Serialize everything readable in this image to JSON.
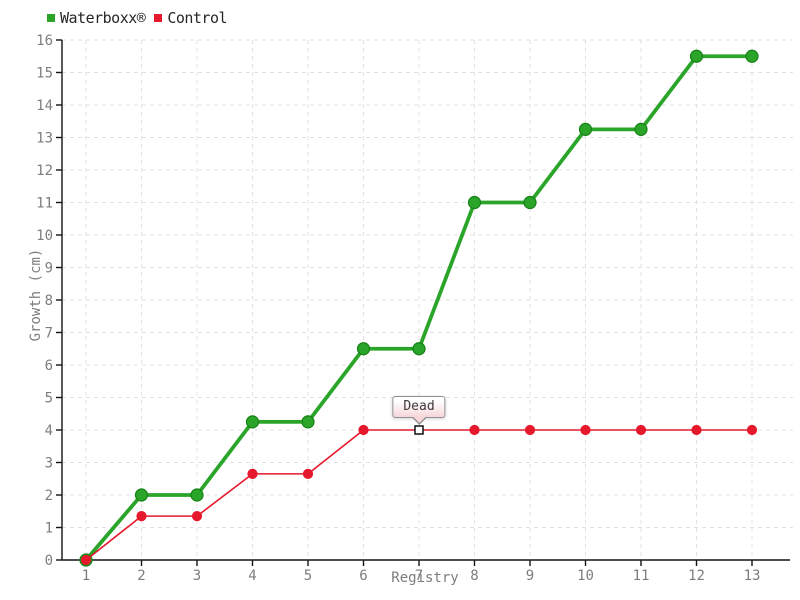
{
  "chart_data": {
    "type": "line",
    "title": "",
    "xlabel": "Registry",
    "ylabel": "Growth (cm)",
    "x": [
      1,
      2,
      3,
      4,
      5,
      6,
      7,
      8,
      9,
      10,
      11,
      12,
      13
    ],
    "ylim": [
      0,
      16
    ],
    "ytick_step": 1,
    "grid": "dashed-both-axes",
    "grid_color": "#e2e2e2",
    "legend_position": "top-left",
    "series": [
      {
        "name": "Waterboxx®",
        "color": "#2aa52a",
        "marker": "circle",
        "marker_edge_color": "#148114",
        "marker_radius": 6,
        "line_width": 3.8,
        "values": [
          0,
          2,
          2,
          4.25,
          4.25,
          6.5,
          6.5,
          11,
          11,
          13.25,
          13.25,
          15.5,
          15.5
        ]
      },
      {
        "name": "Control",
        "color": "#e5182c",
        "marker": "circle",
        "marker_radius": 4.5,
        "line_width": 1.6,
        "values": [
          0,
          1.35,
          1.35,
          2.65,
          2.65,
          4,
          4,
          4,
          4,
          4,
          4,
          4,
          4
        ],
        "dead_point_x": 7
      }
    ],
    "annotation": {
      "text": "Dead",
      "x": 7,
      "y": 4
    }
  }
}
